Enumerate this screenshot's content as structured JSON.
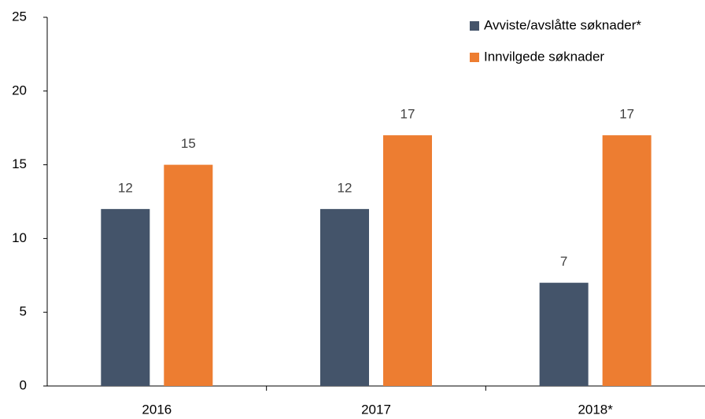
{
  "chart_data": {
    "type": "bar",
    "categories": [
      "2016",
      "2017",
      "2018*"
    ],
    "series": [
      {
        "name": "Avviste/avslåtte søknader*",
        "color": "#44546a",
        "values": [
          12,
          12,
          7
        ]
      },
      {
        "name": "Innvilgede søknader",
        "color": "#ed7d31",
        "values": [
          15,
          17,
          17
        ]
      }
    ],
    "ylim": [
      0,
      25
    ],
    "yticks": [
      0,
      5,
      10,
      15,
      20,
      25
    ],
    "grid": false,
    "legend": "top-right"
  }
}
